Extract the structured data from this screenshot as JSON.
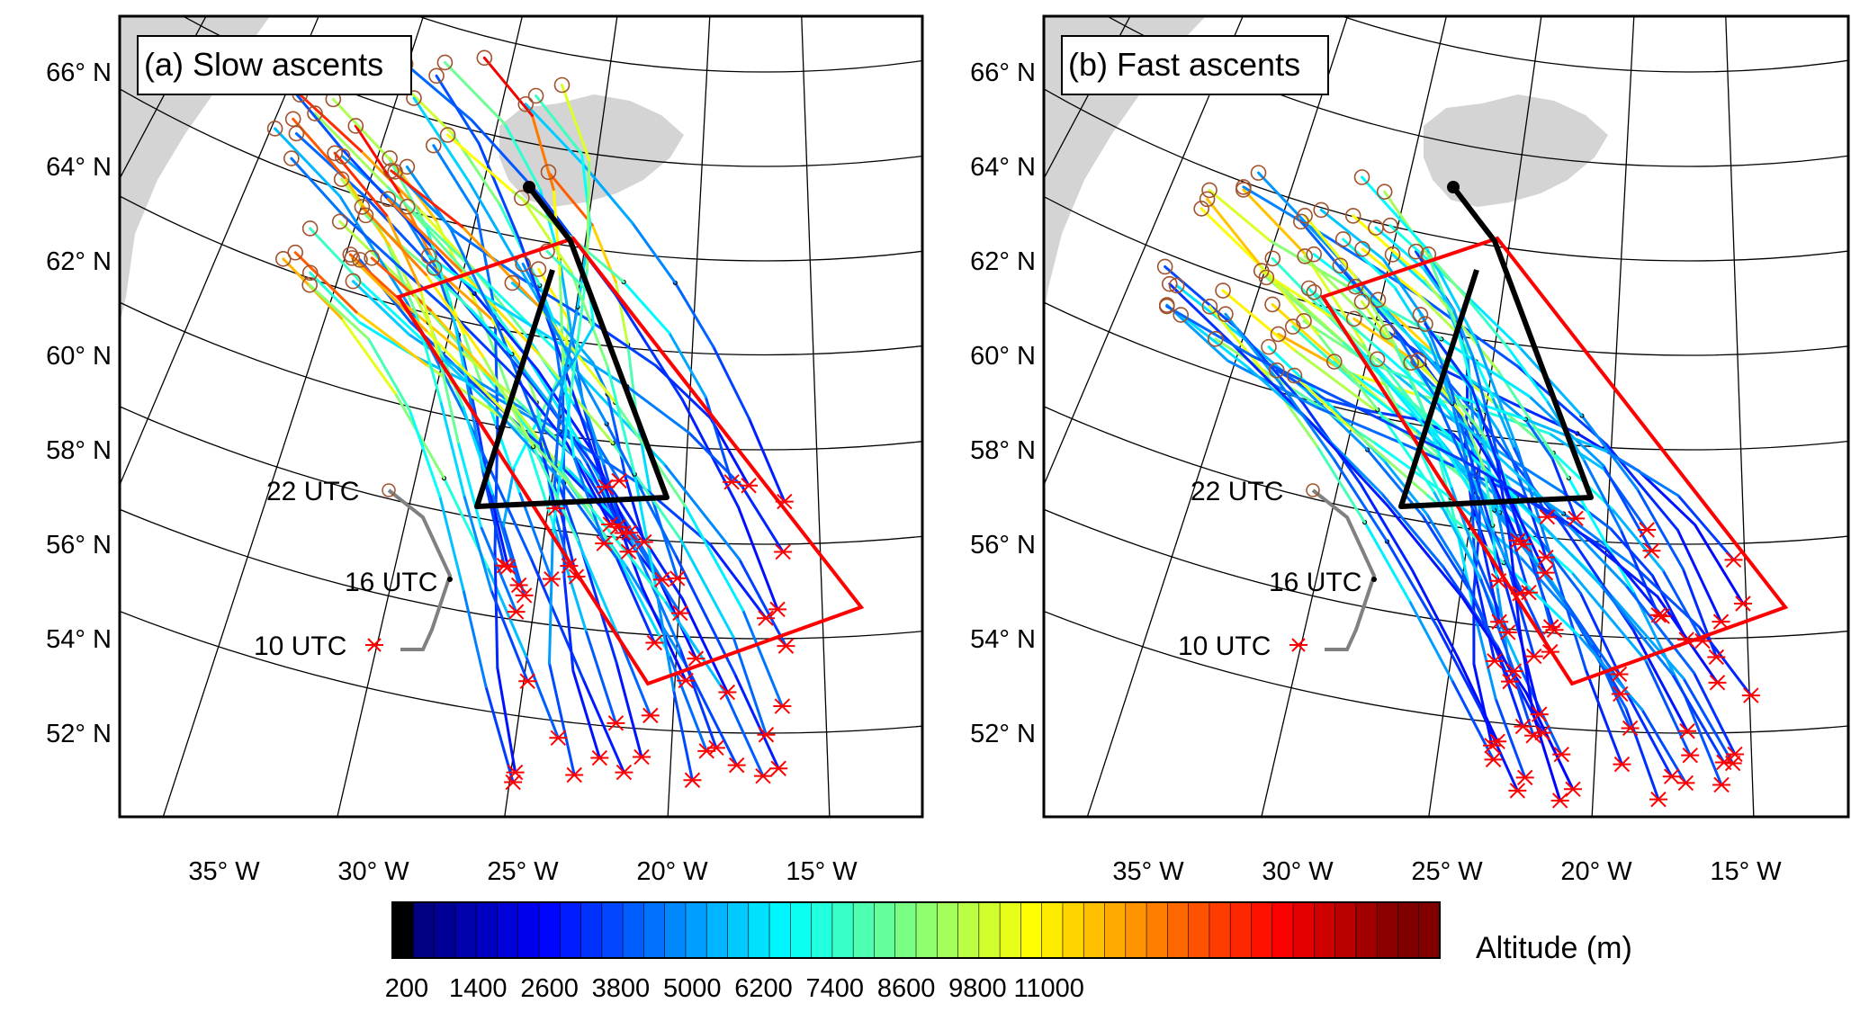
{
  "panels": [
    {
      "title": "(a) Slow ascents",
      "track_labels": [
        "22 UTC",
        "16 UTC",
        "10 UTC"
      ],
      "lat_labels": [
        "66° N",
        "64° N",
        "62° N",
        "60° N",
        "58° N",
        "56° N",
        "54° N",
        "52° N"
      ],
      "lon_labels": [
        "35° W",
        "30° W",
        "25° W",
        "20° W",
        "15° W"
      ]
    },
    {
      "title": "(b) Fast ascents",
      "track_labels": [
        "22 UTC",
        "16 UTC",
        "10 UTC"
      ],
      "lat_labels": [
        "66° N",
        "64° N",
        "62° N",
        "60° N",
        "58° N",
        "56° N",
        "54° N",
        "52° N"
      ],
      "lon_labels": [
        "35° W",
        "30° W",
        "25° W",
        "20° W",
        "15° W"
      ]
    }
  ],
  "colorbar": {
    "title": "Altitude (m)",
    "tick_labels": [
      "200",
      "1400",
      "2600",
      "3800",
      "5000",
      "6200",
      "7400",
      "8600",
      "9800",
      "11000"
    ],
    "levels_count": 50
  },
  "colors": {
    "land": "#d4d4d4",
    "region_box": "#ff0000",
    "flight_track": "#000000",
    "surface_track": "#808080",
    "start_marker": "#ff0000",
    "end_marker": "#a0522d"
  }
}
